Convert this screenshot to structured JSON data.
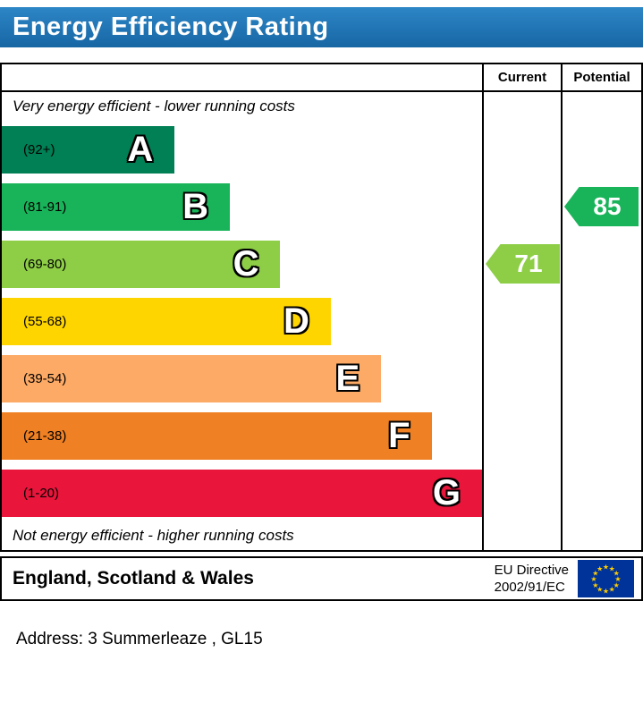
{
  "title": "Energy Efficiency Rating",
  "columns": {
    "current": "Current",
    "potential": "Potential"
  },
  "top_note": "Very energy efficient - lower running costs",
  "bottom_note": "Not energy efficient - higher running costs",
  "bands": [
    {
      "letter": "A",
      "range": "(92+)",
      "color": "#008054",
      "width_pct": "36%"
    },
    {
      "letter": "B",
      "range": "(81-91)",
      "color": "#19b459",
      "width_pct": "47.5%"
    },
    {
      "letter": "C",
      "range": "(69-80)",
      "color": "#8dce46",
      "width_pct": "58%"
    },
    {
      "letter": "D",
      "range": "(55-68)",
      "color": "#ffd500",
      "width_pct": "68.5%"
    },
    {
      "letter": "E",
      "range": "(39-54)",
      "color": "#fcaa65",
      "width_pct": "79%"
    },
    {
      "letter": "F",
      "range": "(21-38)",
      "color": "#ef8023",
      "width_pct": "89.5%"
    },
    {
      "letter": "G",
      "range": "(1-20)",
      "color": "#e9153b",
      "width_pct": "100%"
    }
  ],
  "current": {
    "value": "71",
    "band": "C",
    "color": "#8dce46"
  },
  "potential": {
    "value": "85",
    "band": "B",
    "color": "#19b459"
  },
  "footer": {
    "region": "England, Scotland & Wales",
    "directive_line1": "EU Directive",
    "directive_line2": "2002/91/EC"
  },
  "address_line": "Address: 3 Summerleaze , GL15",
  "colors": {
    "banner_top": "#2d86c6",
    "banner_bottom": "#1766a4",
    "eu_flag_blue": "#003399",
    "eu_star_yellow": "#ffcc00"
  },
  "chart_data": {
    "type": "bar",
    "orientation": "horizontal",
    "title": "Energy Efficiency Rating",
    "categories": [
      "A",
      "B",
      "C",
      "D",
      "E",
      "F",
      "G"
    ],
    "band_ranges": [
      "92+",
      "81-91",
      "69-80",
      "55-68",
      "39-54",
      "21-38",
      "1-20"
    ],
    "band_colors": [
      "#008054",
      "#19b459",
      "#8dce46",
      "#ffd500",
      "#fcaa65",
      "#ef8023",
      "#e9153b"
    ],
    "series": [
      {
        "name": "Current",
        "value": 71,
        "band": "C",
        "color": "#8dce46"
      },
      {
        "name": "Potential",
        "value": 85,
        "band": "B",
        "color": "#19b459"
      }
    ],
    "scale": [
      1,
      100
    ],
    "annotations": [
      "Very energy efficient - lower running costs",
      "Not energy efficient - higher running costs"
    ],
    "legend_position": "none",
    "region_label": "England, Scotland & Wales",
    "directive": "EU Directive 2002/91/EC"
  }
}
